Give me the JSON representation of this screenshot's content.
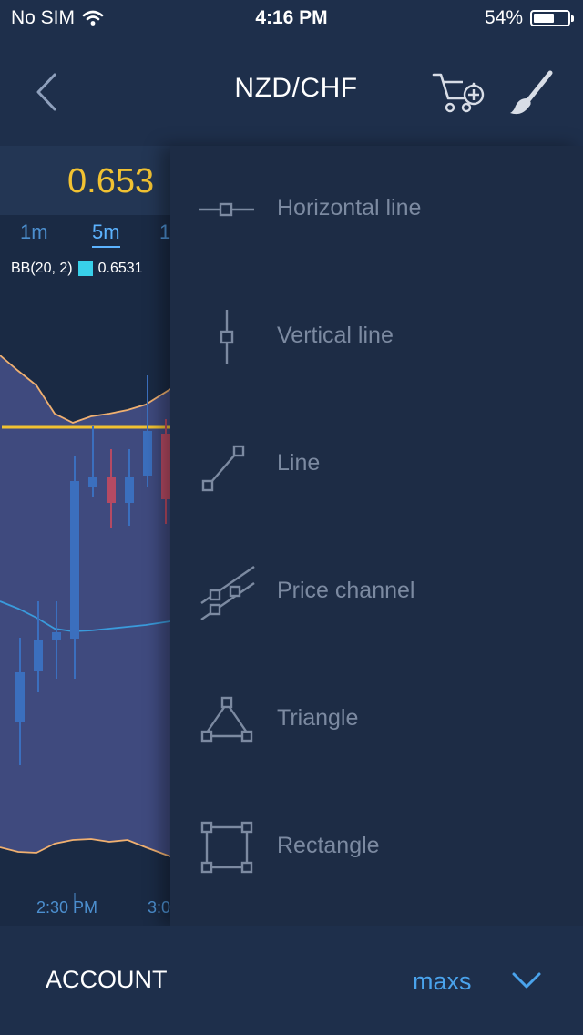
{
  "status": {
    "carrier": "No SIM",
    "time": "4:16 PM",
    "battery": "54%"
  },
  "nav": {
    "title": "NZD/CHF"
  },
  "chart": {
    "price": "0.653",
    "timeframes": [
      {
        "label": "1m"
      },
      {
        "label": "5m",
        "active": true
      },
      {
        "label": "1"
      }
    ],
    "indicator": {
      "name": "BB(20, 2)",
      "value": "0.6531"
    },
    "time_labels": [
      "2:30 PM",
      "3:0"
    ],
    "colors": {
      "price": "#f1c232",
      "band": "#f0b070",
      "mid": "#3a9bdc",
      "up": "#3b6fbe",
      "down": "#b54a63"
    }
  },
  "tools": [
    {
      "icon": "horizontal-line-icon",
      "label": "Horizontal line"
    },
    {
      "icon": "vertical-line-icon",
      "label": "Vertical line"
    },
    {
      "icon": "line-icon",
      "label": "Line"
    },
    {
      "icon": "price-channel-icon",
      "label": "Price channel"
    },
    {
      "icon": "triangle-icon",
      "label": "Triangle"
    },
    {
      "icon": "rectangle-icon",
      "label": "Rectangle"
    }
  ],
  "footer": {
    "account_label": "ACCOUNT",
    "account_value": "maxs"
  }
}
